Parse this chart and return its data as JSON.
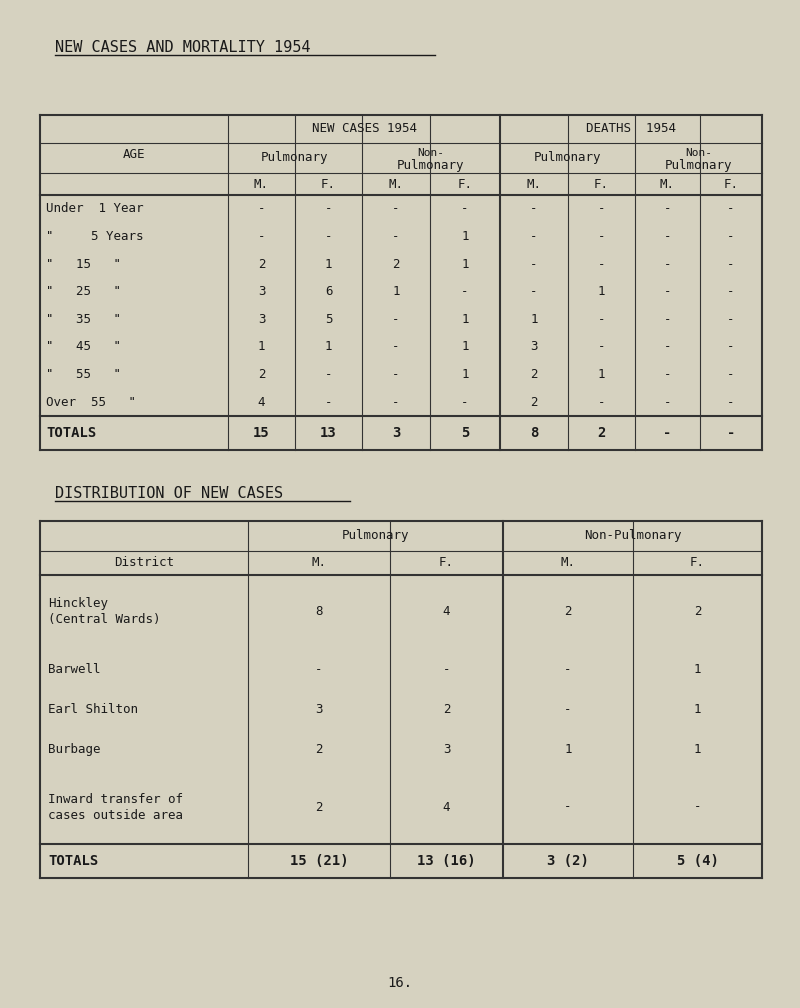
{
  "bg_color": "#d6d2c0",
  "title": "NEW CASES AND MORTALITY 1954",
  "table1": {
    "age_labels": [
      "Under  1 Year",
      "\"     5 Years",
      "\"   15   \"",
      "\"   25   \"",
      "\"   35   \"",
      "\"   45   \"",
      "\"   55   \"",
      "Over  55   \""
    ],
    "new_cases_pulm_m": [
      "-",
      "-",
      "2",
      "3",
      "3",
      "1",
      "2",
      "4"
    ],
    "new_cases_pulm_f": [
      "-",
      "-",
      "1",
      "6",
      "5",
      "1",
      "-",
      "-"
    ],
    "new_cases_nonpulm_m": [
      "-",
      "-",
      "2",
      "1",
      "-",
      "-",
      "-",
      "-"
    ],
    "new_cases_nonpulm_f": [
      "-",
      "1",
      "1",
      "-",
      "1",
      "1",
      "1",
      "-"
    ],
    "deaths_pulm_m": [
      "-",
      "-",
      "-",
      "-",
      "1",
      "3",
      "2",
      "2"
    ],
    "deaths_pulm_f": [
      "-",
      "-",
      "-",
      "1",
      "-",
      "-",
      "1",
      "-"
    ],
    "deaths_nonpulm_m": [
      "-",
      "-",
      "-",
      "-",
      "-",
      "-",
      "-",
      "-"
    ],
    "deaths_nonpulm_f": [
      "-",
      "-",
      "-",
      "-",
      "-",
      "-",
      "-",
      "-"
    ],
    "totals_label": "TOTALS",
    "totals_new_pulm_m": "15",
    "totals_new_pulm_f": "13",
    "totals_new_nonpulm_m": "3",
    "totals_new_nonpulm_f": "5",
    "totals_deaths_pulm_m": "8",
    "totals_deaths_pulm_f": "2",
    "totals_deaths_nonpulm_m": "-",
    "totals_deaths_nonpulm_f": "-"
  },
  "subtitle2": "DISTRIBUTION OF NEW CASES",
  "table2": {
    "districts": [
      "Hinckley\n(Central Wards)",
      "Barwell",
      "Earl Shilton",
      "Burbage",
      "Inward transfer of\ncases outside area"
    ],
    "pulm_m": [
      "8",
      "-",
      "3",
      "2",
      "2"
    ],
    "pulm_f": [
      "4",
      "-",
      "2",
      "3",
      "4"
    ],
    "nonpulm_m": [
      "2",
      "-",
      "-",
      "1",
      "-"
    ],
    "nonpulm_f": [
      "2",
      "1",
      "1",
      "1",
      "-"
    ],
    "totals_label": "TOTALS",
    "totals_pulm_m": "15 (21)",
    "totals_pulm_f": "13 (16)",
    "totals_nonpulm_m": "3 (2)",
    "totals_nonpulm_f": "5 (4)"
  },
  "page_number": "16.",
  "font_family": "monospace",
  "font_size_title": 11,
  "font_size_body": 9,
  "font_size_header": 9,
  "text_color": "#1a1a1a",
  "line_color": "#333333"
}
